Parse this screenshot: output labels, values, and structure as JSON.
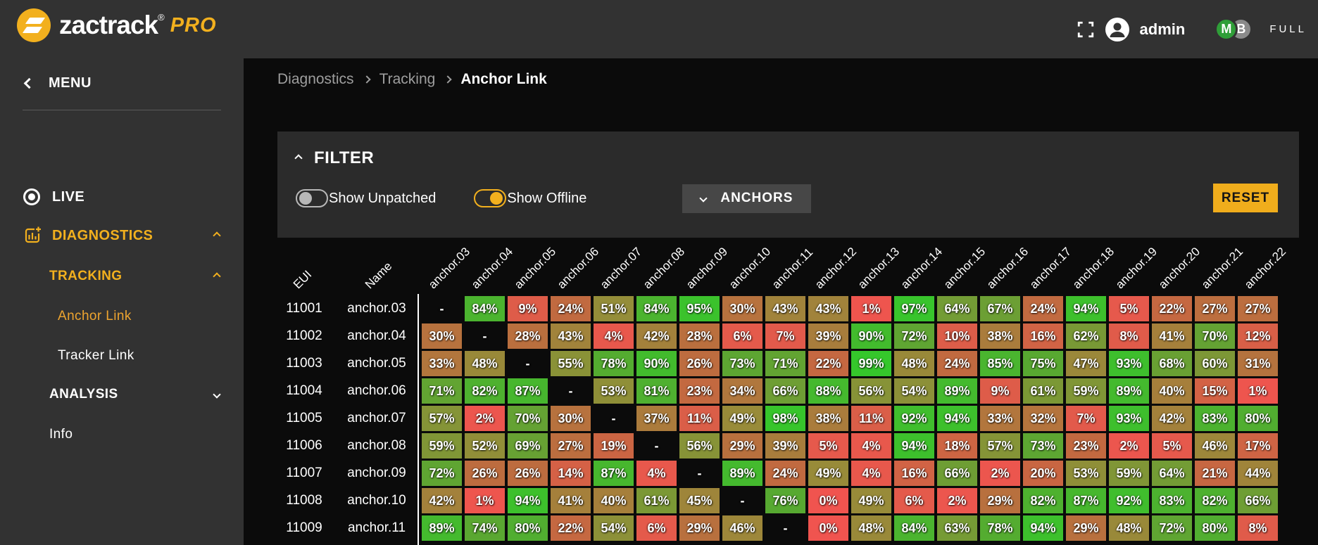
{
  "header": {
    "brand_name": "zactrack",
    "brand_reg": "®",
    "brand_pro": "PRO",
    "user": "admin",
    "badges": [
      {
        "label": "M",
        "color": "#2f9e38"
      },
      {
        "label": "B",
        "color": "#8a8a8a"
      }
    ],
    "mode": "FULL"
  },
  "sidebar": {
    "menu_label": "MENU",
    "items": [
      {
        "label": "LIVE"
      },
      {
        "label": "DIAGNOSTICS"
      },
      {
        "label": "TRACKING"
      },
      {
        "label": "Anchor Link"
      },
      {
        "label": "Tracker Link"
      },
      {
        "label": "ANALYSIS"
      },
      {
        "label": "Info"
      }
    ]
  },
  "breadcrumb": {
    "items": [
      "Diagnostics",
      "Tracking",
      "Anchor Link"
    ]
  },
  "filter": {
    "title": "FILTER",
    "toggles": [
      {
        "label": "Show Unpatched",
        "on": false
      },
      {
        "label": "Show Offline",
        "on": true
      }
    ],
    "anchors_button": "ANCHORS",
    "reset_button": "RESET"
  },
  "table": {
    "corner_headers": [
      "EUI",
      "Name"
    ],
    "columns": [
      "anchor.03",
      "anchor.04",
      "anchor.05",
      "anchor.06",
      "anchor.07",
      "anchor.08",
      "anchor.09",
      "anchor.10",
      "anchor.11",
      "anchor.12",
      "anchor.13",
      "anchor.14",
      "anchor.15",
      "anchor.16",
      "anchor.17",
      "anchor.18",
      "anchor.19",
      "anchor.20",
      "anchor.21",
      "anchor.22"
    ],
    "rows": [
      {
        "eui": "11001",
        "name": "anchor.03",
        "values": [
          "-",
          84,
          9,
          24,
          51,
          84,
          95,
          30,
          43,
          43,
          1,
          97,
          64,
          67,
          24,
          94,
          5,
          22,
          27,
          27
        ]
      },
      {
        "eui": "11002",
        "name": "anchor.04",
        "values": [
          30,
          "-",
          28,
          43,
          4,
          42,
          28,
          6,
          7,
          39,
          90,
          72,
          10,
          38,
          16,
          62,
          8,
          41,
          70,
          12
        ]
      },
      {
        "eui": "11003",
        "name": "anchor.05",
        "values": [
          33,
          48,
          "-",
          55,
          78,
          90,
          26,
          73,
          71,
          22,
          99,
          48,
          24,
          85,
          75,
          47,
          93,
          68,
          60,
          31
        ]
      },
      {
        "eui": "11004",
        "name": "anchor.06",
        "values": [
          71,
          82,
          87,
          "-",
          53,
          81,
          23,
          34,
          66,
          88,
          56,
          54,
          89,
          9,
          61,
          59,
          89,
          40,
          15,
          1
        ]
      },
      {
        "eui": "11005",
        "name": "anchor.07",
        "values": [
          57,
          2,
          70,
          30,
          "-",
          37,
          11,
          49,
          98,
          38,
          11,
          92,
          94,
          33,
          32,
          7,
          93,
          42,
          83,
          80
        ]
      },
      {
        "eui": "11006",
        "name": "anchor.08",
        "values": [
          59,
          52,
          69,
          27,
          19,
          "-",
          56,
          29,
          39,
          5,
          4,
          94,
          18,
          57,
          73,
          23,
          2,
          5,
          46,
          17
        ]
      },
      {
        "eui": "11007",
        "name": "anchor.09",
        "values": [
          72,
          26,
          26,
          14,
          87,
          4,
          "-",
          89,
          24,
          49,
          4,
          16,
          66,
          2,
          20,
          53,
          59,
          64,
          21,
          44
        ]
      },
      {
        "eui": "11008",
        "name": "anchor.10",
        "values": [
          42,
          1,
          94,
          41,
          40,
          61,
          45,
          "-",
          76,
          0,
          49,
          6,
          2,
          29,
          82,
          87,
          92,
          83,
          82,
          66
        ]
      },
      {
        "eui": "11009",
        "name": "anchor.11",
        "values": [
          89,
          74,
          80,
          22,
          54,
          6,
          29,
          46,
          "-",
          0,
          48,
          84,
          63,
          78,
          94,
          29,
          48,
          72,
          80,
          8
        ]
      }
    ]
  },
  "colors": {
    "accent": "#f2b01e",
    "selected_item": "#eda42f",
    "cell_scale": {
      "0": "#f05450",
      "25": "#bf6b3f",
      "50": "#968c39",
      "75": "#58a831",
      "100": "#34c82b"
    }
  }
}
